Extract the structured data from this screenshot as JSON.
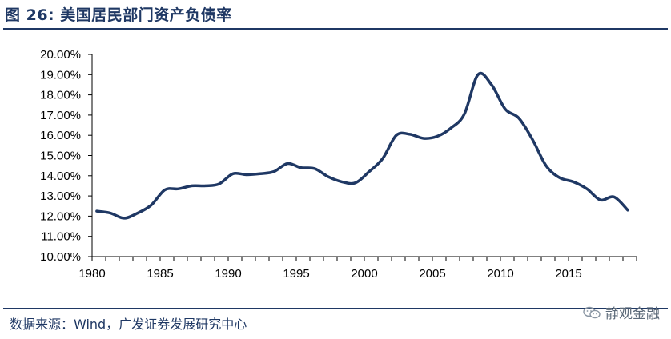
{
  "header": {
    "title": "图 26:  美国居民部门资产负债率"
  },
  "footer": {
    "source": "数据来源：Wind，广发证券发展研究中心",
    "watermark": "静观金融",
    "watermark_icon": "wechat-icon"
  },
  "chart_data": {
    "type": "line",
    "title": "",
    "xlabel": "",
    "ylabel": "",
    "xlim": [
      1980,
      2020
    ],
    "ylim": [
      10,
      20
    ],
    "x_ticks": [
      "1980",
      "1985",
      "1990",
      "1995",
      "2000",
      "2005",
      "2010",
      "2015"
    ],
    "y_ticks": [
      "10.00%",
      "11.00%",
      "12.00%",
      "13.00%",
      "14.00%",
      "15.00%",
      "16.00%",
      "17.00%",
      "18.00%",
      "19.00%",
      "20.00%"
    ],
    "grid": false,
    "legend": "none",
    "line_color": "#1f3864",
    "series": [
      {
        "x": [
          1980,
          1981,
          1982,
          1983,
          1984,
          1985,
          1986,
          1987,
          1988,
          1989,
          1990,
          1991,
          1992,
          1993,
          1994,
          1995,
          1996,
          1997,
          1998,
          1999,
          2000,
          2001,
          2002,
          2003,
          2004,
          2005,
          2006,
          2007,
          2008,
          2009,
          2010,
          2011,
          2012,
          2013,
          2014,
          2015,
          2016,
          2017,
          2018,
          2019
        ],
        "y": [
          12.25,
          12.15,
          11.9,
          12.15,
          12.55,
          13.3,
          13.35,
          13.5,
          13.5,
          13.6,
          14.1,
          14.05,
          14.1,
          14.2,
          14.6,
          14.4,
          14.35,
          13.95,
          13.7,
          13.65,
          14.2,
          14.85,
          16.0,
          16.05,
          15.85,
          15.95,
          16.35,
          17.05,
          19.0,
          18.5,
          17.3,
          16.85,
          15.8,
          14.5,
          13.9,
          13.7,
          13.35,
          12.8,
          12.95,
          12.3
        ]
      }
    ]
  }
}
